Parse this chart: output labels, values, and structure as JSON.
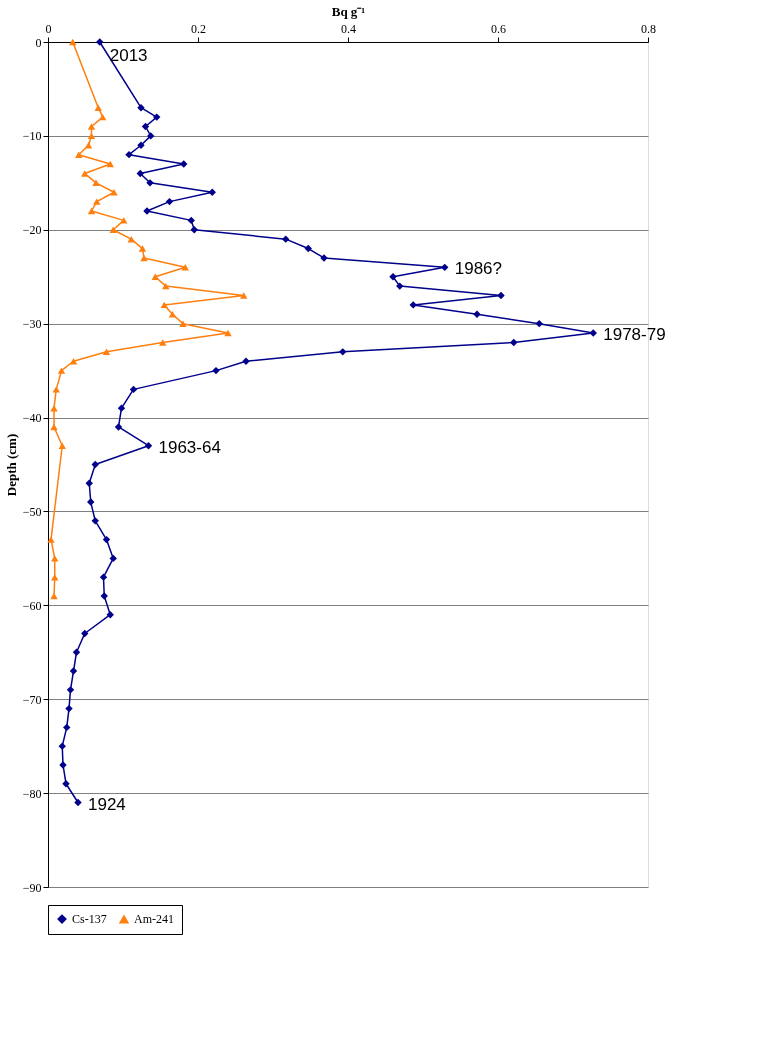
{
  "chart_data": {
    "type": "line",
    "xlabel": "Bq g⁻¹",
    "ylabel": "Depth (cm)",
    "xlim": [
      0,
      0.8
    ],
    "xticks": [
      0,
      0.2,
      0.4,
      0.6,
      0.8
    ],
    "ylim": [
      -90,
      0
    ],
    "yticks": [
      0,
      -10,
      -20,
      -30,
      -40,
      -50,
      -60,
      -70,
      -80,
      -90
    ],
    "grid": "y",
    "legend": "bottom",
    "line_style": "solid",
    "series": [
      {
        "name": "Cs-137",
        "color": "#00008b",
        "marker": "diamond",
        "x": [
          0.069,
          0.124,
          0.145,
          0.13,
          0.137,
          0.124,
          0.108,
          0.181,
          0.123,
          0.136,
          0.219,
          0.162,
          0.132,
          0.191,
          0.195,
          0.317,
          0.347,
          0.368,
          0.529,
          0.46,
          0.469,
          0.604,
          0.487,
          0.572,
          0.655,
          0.727,
          0.621,
          0.393,
          0.264,
          0.224,
          0.114,
          0.098,
          0.094,
          0.134,
          0.063,
          0.055,
          0.057,
          0.063,
          0.078,
          0.087,
          0.074,
          0.075,
          0.083,
          0.049,
          0.038,
          0.034,
          0.03,
          0.028,
          0.025,
          0.019,
          0.02,
          0.024,
          0.04
        ],
        "values": [
          0,
          -7,
          -8,
          -9,
          -10,
          -11,
          -12,
          -13,
          -14,
          -15,
          -16,
          -17,
          -18,
          -19,
          -20,
          -21,
          -22,
          -23,
          -24,
          -25,
          -26,
          -27,
          -28,
          -29,
          -30,
          -31,
          -32,
          -33,
          -34,
          -35,
          -37,
          -39,
          -41,
          -43,
          -45,
          -47,
          -49,
          -51,
          -53,
          -55,
          -57,
          -59,
          -61,
          -63,
          -65,
          -67,
          -69,
          -71,
          -73,
          -75,
          -77,
          -79,
          -81
        ]
      },
      {
        "name": "Am-241",
        "color": "#ff7f0e",
        "marker": "triangle",
        "x": [
          0.033,
          0.067,
          0.073,
          0.058,
          0.058,
          0.054,
          0.041,
          0.083,
          0.049,
          0.064,
          0.088,
          0.065,
          0.058,
          0.101,
          0.087,
          0.111,
          0.126,
          0.128,
          0.183,
          0.143,
          0.157,
          0.261,
          0.155,
          0.166,
          0.18,
          0.24,
          0.153,
          0.078,
          0.034,
          0.018,
          0.011,
          0.008,
          0.008,
          0.019,
          0.004,
          0.009,
          0.009,
          0.008
        ],
        "values": [
          0,
          -7,
          -8,
          -9,
          -10,
          -11,
          -12,
          -13,
          -14,
          -15,
          -16,
          -17,
          -18,
          -19,
          -20,
          -21,
          -22,
          -23,
          -24,
          -25,
          -26,
          -27,
          -28,
          -29,
          -30,
          -31,
          -32,
          -33,
          -34,
          -35,
          -37,
          -39,
          -41,
          -43,
          -53,
          -55,
          -57,
          -59
        ]
      }
    ],
    "annotations": [
      {
        "text": "2013",
        "x": 0.069,
        "y": 0
      },
      {
        "text": "1986?",
        "x": 0.529,
        "y": -24
      },
      {
        "text": "1978-79",
        "x": 0.727,
        "y": -31
      },
      {
        "text": "1963-64",
        "x": 0.134,
        "y": -43
      },
      {
        "text": "1924",
        "x": 0.04,
        "y": -81
      }
    ]
  }
}
